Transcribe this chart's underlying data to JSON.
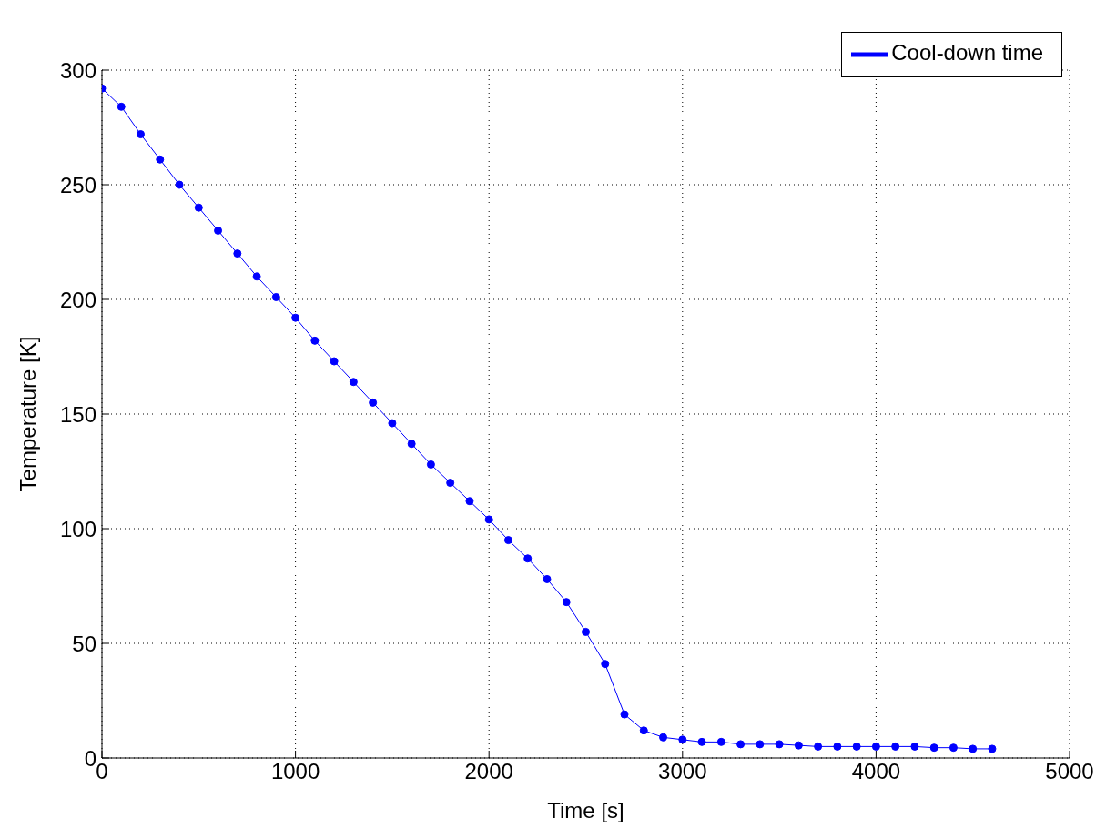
{
  "chart_data": {
    "type": "line",
    "xlabel": "Time [s]",
    "ylabel": "Temperature [K]",
    "x": [
      0,
      100,
      200,
      300,
      400,
      500,
      600,
      700,
      800,
      900,
      1000,
      1100,
      1200,
      1300,
      1400,
      1500,
      1600,
      1700,
      1800,
      1900,
      2000,
      2100,
      2200,
      2300,
      2400,
      2500,
      2600,
      2700,
      2800,
      2900,
      3000,
      3100,
      3200,
      3300,
      3400,
      3500,
      3600,
      3700,
      3800,
      3900,
      4000,
      4100,
      4200,
      4300,
      4400,
      4500,
      4600
    ],
    "series": [
      {
        "name": "Cool-down time",
        "color": "#0000ff",
        "values": [
          292,
          284,
          272,
          261,
          250,
          240,
          230,
          220,
          210,
          201,
          192,
          182,
          173,
          164,
          155,
          146,
          137,
          128,
          120,
          112,
          104,
          95,
          87,
          78,
          68,
          55,
          41,
          19,
          12,
          9,
          8,
          7,
          7,
          6,
          6,
          6,
          5.5,
          5,
          5,
          5,
          5,
          5,
          5,
          4.5,
          4.5,
          4,
          4
        ]
      }
    ],
    "xlim": [
      0,
      5000
    ],
    "xticks": [
      0,
      1000,
      2000,
      3000,
      4000,
      5000
    ],
    "ylim": [
      0,
      300
    ],
    "yticks": [
      0,
      50,
      100,
      150,
      200,
      250,
      300
    ],
    "grid": true,
    "legend": "top right",
    "marker": "circle",
    "line_style": "solid"
  }
}
